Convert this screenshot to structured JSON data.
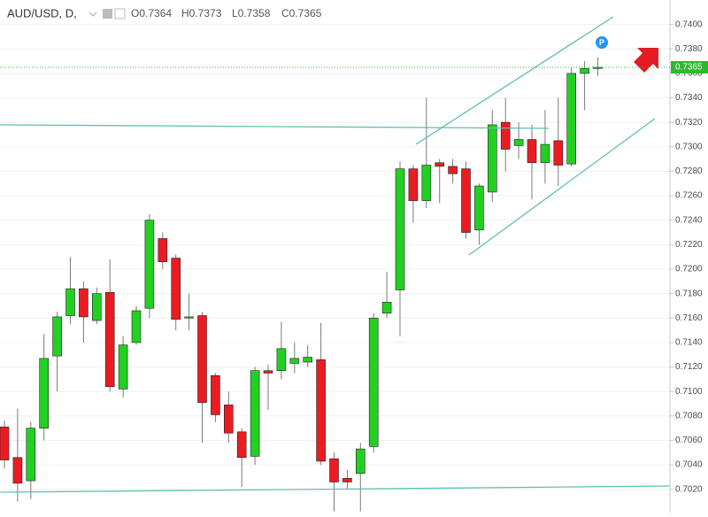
{
  "chart_data": {
    "type": "candlestick",
    "symbol": "AUD/USD, D,",
    "ohlc_labels": [
      "O0.7364",
      "H0.7373",
      "L0.7358",
      "C0.7365"
    ],
    "marker_label": "P",
    "categories": [
      null,
      null,
      null,
      null,
      null,
      null,
      null,
      null,
      null,
      null,
      null,
      null,
      null,
      null,
      null,
      null,
      null,
      null,
      null,
      null,
      null,
      null,
      null,
      null,
      null,
      null,
      null,
      null,
      null,
      null,
      null,
      null,
      null,
      null,
      null,
      null,
      null,
      null,
      null,
      null,
      null,
      null,
      null,
      null,
      null,
      null
    ],
    "open": [
      0.7071,
      0.7046,
      0.7027,
      0.707,
      0.7129,
      0.7162,
      0.7184,
      0.7158,
      0.7181,
      0.7102,
      0.714,
      0.7168,
      0.7225,
      0.7209,
      0.716,
      0.7162,
      0.7113,
      0.7089,
      0.7067,
      0.7047,
      0.7117,
      0.7117,
      0.7123,
      0.7124,
      0.7126,
      0.7045,
      0.7029,
      0.7033,
      0.7055,
      0.7164,
      0.7183,
      0.7282,
      0.7256,
      0.7287,
      0.7284,
      0.7282,
      0.7232,
      0.7263,
      0.732,
      0.7301,
      0.7306,
      0.7287,
      0.7305,
      0.7286,
      0.736,
      0.7364
    ],
    "high": [
      0.7076,
      0.7086,
      0.7075,
      0.7147,
      0.7165,
      0.721,
      0.719,
      0.7185,
      0.7208,
      0.7145,
      0.717,
      0.7245,
      0.723,
      0.7212,
      0.718,
      0.7165,
      0.7115,
      0.71,
      0.707,
      0.712,
      0.7122,
      0.7157,
      0.714,
      0.7138,
      0.7156,
      0.705,
      0.7036,
      0.7058,
      0.7164,
      0.7198,
      0.7288,
      0.7285,
      0.734,
      0.729,
      0.729,
      0.7288,
      0.727,
      0.733,
      0.734,
      0.732,
      0.7318,
      0.733,
      0.734,
      0.7365,
      0.737,
      0.7373
    ],
    "low": [
      0.7037,
      0.701,
      0.7012,
      0.706,
      0.71,
      0.7155,
      0.714,
      0.7155,
      0.71,
      0.7095,
      0.7138,
      0.716,
      0.72,
      0.715,
      0.715,
      0.7058,
      0.7075,
      0.7058,
      0.7022,
      0.704,
      0.7085,
      0.711,
      0.7115,
      0.712,
      0.704,
      0.7002,
      0.702,
      0.7002,
      0.705,
      0.716,
      0.7145,
      0.7238,
      0.725,
      0.7254,
      0.727,
      0.7225,
      0.722,
      0.7255,
      0.728,
      0.729,
      0.7257,
      0.727,
      0.7268,
      0.7284,
      0.733,
      0.7358
    ],
    "close": [
      0.7044,
      0.7025,
      0.707,
      0.7127,
      0.7161,
      0.7184,
      0.7161,
      0.718,
      0.7104,
      0.7138,
      0.7166,
      0.724,
      0.7206,
      0.7159,
      0.7161,
      0.7091,
      0.7081,
      0.7066,
      0.7046,
      0.7117,
      0.7115,
      0.7135,
      0.7127,
      0.7128,
      0.7043,
      0.7026,
      0.7026,
      0.7053,
      0.716,
      0.7173,
      0.7282,
      0.7256,
      0.7285,
      0.7284,
      0.7278,
      0.723,
      0.7268,
      0.7318,
      0.7298,
      0.7306,
      0.7287,
      0.7302,
      0.7285,
      0.736,
      0.7364,
      0.7365
    ],
    "up_color": "#22d022",
    "down_color": "#ea1c22",
    "last_price": {
      "value": 0.7365,
      "label": "0.7365"
    },
    "last_price_color": "#2eb82e",
    "ylim": [
      0.7001,
      0.742
    ],
    "yticks": [
      {
        "value": 0.702,
        "label": "0.7020"
      },
      {
        "value": 0.704,
        "label": "0.7040"
      },
      {
        "value": 0.706,
        "label": "0.7060"
      },
      {
        "value": 0.708,
        "label": "0.7080"
      },
      {
        "value": 0.71,
        "label": "0.7100"
      },
      {
        "value": 0.712,
        "label": "0.7120"
      },
      {
        "value": 0.714,
        "label": "0.7140"
      },
      {
        "value": 0.716,
        "label": "0.7160"
      },
      {
        "value": 0.718,
        "label": "0.7180"
      },
      {
        "value": 0.72,
        "label": "0.7200"
      },
      {
        "value": 0.722,
        "label": "0.7220"
      },
      {
        "value": 0.724,
        "label": "0.7240"
      },
      {
        "value": 0.726,
        "label": "0.7260"
      },
      {
        "value": 0.728,
        "label": "0.7280"
      },
      {
        "value": 0.73,
        "label": "0.7300"
      },
      {
        "value": 0.732,
        "label": "0.7320"
      },
      {
        "value": 0.734,
        "label": "0.7340"
      },
      {
        "value": 0.736,
        "label": "0.7360"
      },
      {
        "value": 0.738,
        "label": "0.7380"
      },
      {
        "value": 0.74,
        "label": "0.7400"
      }
    ],
    "grid": true
  }
}
